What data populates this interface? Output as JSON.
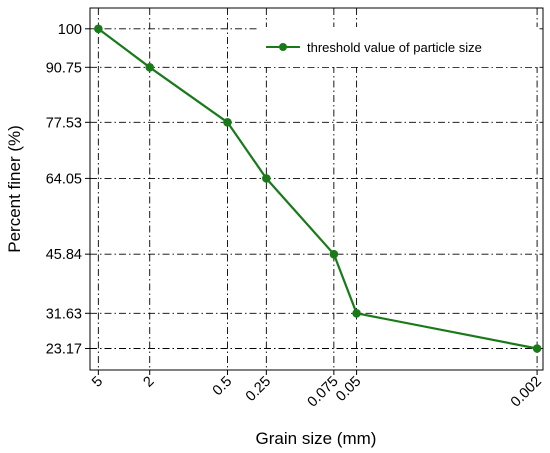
{
  "chart_data": {
    "type": "line",
    "title": "",
    "xlabel": "Grain size (mm)",
    "ylabel": "Percent finer (%)",
    "x_scale": "log",
    "x_direction": "reversed",
    "x_tick_labels": [
      "5",
      "2",
      "0.5",
      "0.25",
      "0.075",
      "0.05",
      "0.002"
    ],
    "y_tick_labels": [
      "100",
      "90.75",
      "77.53",
      "64.05",
      "45.84",
      "31.63",
      "23.17"
    ],
    "x": [
      5,
      2,
      0.5,
      0.25,
      0.075,
      0.05,
      0.002
    ],
    "ylim": [
      18,
      105
    ],
    "grid": true,
    "legend_position": "top-right",
    "series": [
      {
        "name": "threshold value of particle size",
        "color": "#1a7a1a",
        "values": [
          100,
          90.75,
          77.53,
          64.05,
          45.84,
          31.63,
          23.17
        ]
      }
    ]
  }
}
